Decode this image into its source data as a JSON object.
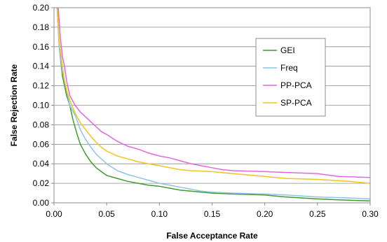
{
  "chart_data": {
    "type": "line",
    "title": "",
    "xlabel": "False Acceptance Rate",
    "ylabel": "False Rejection Rate",
    "xlim": [
      0,
      0.3
    ],
    "ylim": [
      0,
      0.2
    ],
    "xticks": [
      "0.00",
      "0.05",
      "0.10",
      "0.15",
      "0.20",
      "0.25",
      "0.30"
    ],
    "yticks": [
      "0.00",
      "0.02",
      "0.04",
      "0.06",
      "0.08",
      "0.10",
      "0.12",
      "0.14",
      "0.16",
      "0.18",
      "0.20"
    ],
    "grid": "horizontal",
    "legend_position": "right",
    "series": [
      {
        "name": "GEI",
        "color": "#3f9a2f",
        "points": [
          [
            0.003,
            0.2
          ],
          [
            0.005,
            0.16
          ],
          [
            0.008,
            0.13
          ],
          [
            0.012,
            0.11
          ],
          [
            0.015,
            0.1
          ],
          [
            0.018,
            0.085
          ],
          [
            0.022,
            0.07
          ],
          [
            0.025,
            0.06
          ],
          [
            0.03,
            0.05
          ],
          [
            0.035,
            0.042
          ],
          [
            0.04,
            0.036
          ],
          [
            0.045,
            0.032
          ],
          [
            0.05,
            0.028
          ],
          [
            0.06,
            0.025
          ],
          [
            0.07,
            0.022
          ],
          [
            0.08,
            0.02
          ],
          [
            0.09,
            0.018
          ],
          [
            0.1,
            0.017
          ],
          [
            0.11,
            0.015
          ],
          [
            0.12,
            0.013
          ],
          [
            0.13,
            0.012
          ],
          [
            0.14,
            0.011
          ],
          [
            0.15,
            0.01
          ],
          [
            0.17,
            0.009
          ],
          [
            0.2,
            0.008
          ],
          [
            0.22,
            0.006
          ],
          [
            0.25,
            0.004
          ],
          [
            0.27,
            0.003
          ],
          [
            0.3,
            0.002
          ]
        ]
      },
      {
        "name": "Freq",
        "color": "#8fc3e6",
        "points": [
          [
            0.003,
            0.2
          ],
          [
            0.005,
            0.16
          ],
          [
            0.008,
            0.135
          ],
          [
            0.012,
            0.115
          ],
          [
            0.015,
            0.1
          ],
          [
            0.02,
            0.09
          ],
          [
            0.025,
            0.075
          ],
          [
            0.03,
            0.065
          ],
          [
            0.035,
            0.057
          ],
          [
            0.04,
            0.05
          ],
          [
            0.045,
            0.045
          ],
          [
            0.05,
            0.04
          ],
          [
            0.06,
            0.033
          ],
          [
            0.07,
            0.029
          ],
          [
            0.08,
            0.026
          ],
          [
            0.09,
            0.023
          ],
          [
            0.1,
            0.02
          ],
          [
            0.11,
            0.018
          ],
          [
            0.12,
            0.016
          ],
          [
            0.13,
            0.014
          ],
          [
            0.14,
            0.012
          ],
          [
            0.15,
            0.011
          ],
          [
            0.17,
            0.01
          ],
          [
            0.2,
            0.009
          ],
          [
            0.22,
            0.008
          ],
          [
            0.25,
            0.006
          ],
          [
            0.28,
            0.005
          ],
          [
            0.3,
            0.004
          ]
        ]
      },
      {
        "name": "PP-PCA",
        "color": "#e067e0",
        "points": [
          [
            0.004,
            0.2
          ],
          [
            0.006,
            0.17
          ],
          [
            0.008,
            0.15
          ],
          [
            0.01,
            0.14
          ],
          [
            0.012,
            0.125
          ],
          [
            0.015,
            0.11
          ],
          [
            0.02,
            0.1
          ],
          [
            0.025,
            0.093
          ],
          [
            0.03,
            0.088
          ],
          [
            0.035,
            0.083
          ],
          [
            0.04,
            0.078
          ],
          [
            0.045,
            0.073
          ],
          [
            0.05,
            0.07
          ],
          [
            0.06,
            0.063
          ],
          [
            0.07,
            0.058
          ],
          [
            0.08,
            0.055
          ],
          [
            0.09,
            0.051
          ],
          [
            0.1,
            0.048
          ],
          [
            0.11,
            0.046
          ],
          [
            0.12,
            0.043
          ],
          [
            0.13,
            0.04
          ],
          [
            0.14,
            0.038
          ],
          [
            0.15,
            0.036
          ],
          [
            0.16,
            0.034
          ],
          [
            0.17,
            0.033
          ],
          [
            0.2,
            0.032
          ],
          [
            0.25,
            0.03
          ],
          [
            0.27,
            0.027
          ],
          [
            0.3,
            0.026
          ]
        ]
      },
      {
        "name": "SP-PCA",
        "color": "#f2c31e",
        "points": [
          [
            0.003,
            0.2
          ],
          [
            0.005,
            0.165
          ],
          [
            0.008,
            0.14
          ],
          [
            0.01,
            0.125
          ],
          [
            0.012,
            0.115
          ],
          [
            0.015,
            0.105
          ],
          [
            0.02,
            0.092
          ],
          [
            0.025,
            0.082
          ],
          [
            0.03,
            0.075
          ],
          [
            0.035,
            0.068
          ],
          [
            0.04,
            0.062
          ],
          [
            0.045,
            0.057
          ],
          [
            0.05,
            0.053
          ],
          [
            0.06,
            0.048
          ],
          [
            0.07,
            0.045
          ],
          [
            0.08,
            0.042
          ],
          [
            0.09,
            0.04
          ],
          [
            0.1,
            0.038
          ],
          [
            0.11,
            0.036
          ],
          [
            0.12,
            0.034
          ],
          [
            0.13,
            0.033
          ],
          [
            0.15,
            0.032
          ],
          [
            0.17,
            0.03
          ],
          [
            0.2,
            0.027
          ],
          [
            0.22,
            0.025
          ],
          [
            0.25,
            0.024
          ],
          [
            0.28,
            0.022
          ],
          [
            0.3,
            0.02
          ]
        ]
      }
    ]
  }
}
